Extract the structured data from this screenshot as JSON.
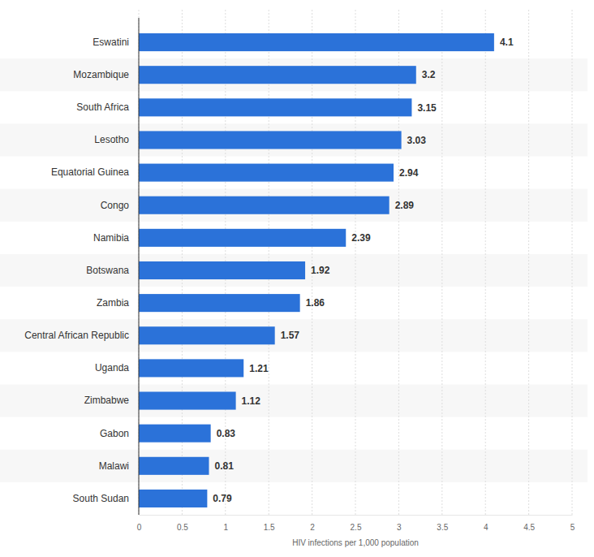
{
  "chart_data": {
    "type": "bar",
    "orientation": "horizontal",
    "categories": [
      "Eswatini",
      "Mozambique",
      "South Africa",
      "Lesotho",
      "Equatorial Guinea",
      "Congo",
      "Namibia",
      "Botswana",
      "Zambia",
      "Central African Republic",
      "Uganda",
      "Zimbabwe",
      "Gabon",
      "Malawi",
      "South Sudan"
    ],
    "values": [
      4.1,
      3.2,
      3.15,
      3.03,
      2.94,
      2.89,
      2.39,
      1.92,
      1.86,
      1.57,
      1.21,
      1.12,
      0.83,
      0.81,
      0.79
    ],
    "color": "#2b72d9",
    "x_label": "HIV infections per 1,000 population",
    "xlim": [
      0,
      5
    ],
    "xticks": [
      0,
      0.5,
      1,
      1.5,
      2,
      2.5,
      3,
      3.5,
      4,
      4.5,
      5
    ],
    "grid": true,
    "data_labels": true
  }
}
